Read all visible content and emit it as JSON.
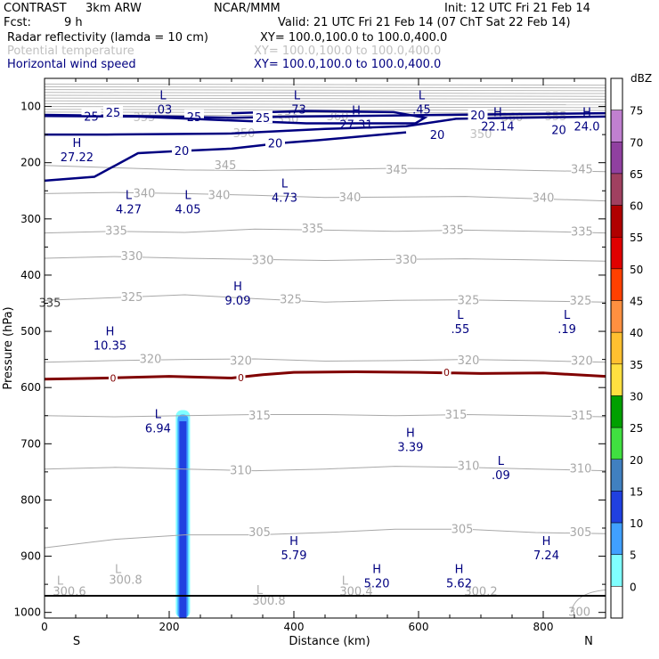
{
  "header": {
    "model": "CONTRAST",
    "resolution": "3km ARW",
    "center": "NCAR/MMM",
    "init": "Init: 12 UTC Fri 21 Feb 14",
    "fcst_label": "Fcst:",
    "fcst_value": "9 h",
    "valid": "Valid: 21 UTC Fri 21 Feb 14 (07 ChT Sat 22 Feb 14)"
  },
  "fields": [
    {
      "name": "Radar reflectivity (lamda = 10 cm)",
      "xy": "XY= 100.0,100.0 to 100.0,400.0",
      "color": "#000000"
    },
    {
      "name": "Potential temperature",
      "xy": "XY= 100.0,100.0 to 100.0,400.0",
      "color": "#c0c0c0"
    },
    {
      "name": "Horizontal wind speed",
      "xy": "XY= 100.0,100.0 to 100.0,400.0",
      "color": "#000080"
    }
  ],
  "chart_data": {
    "type": "cross-section",
    "xlabel": "Distance (km)",
    "ylabel": "Pressure (hPa)",
    "xlim": [
      0,
      900
    ],
    "ylim": [
      1010,
      50
    ],
    "x_ticks": [
      0,
      200,
      400,
      600,
      800
    ],
    "y_ticks": [
      100,
      200,
      300,
      400,
      500,
      600,
      700,
      800,
      900,
      1000
    ],
    "direction_left": "S",
    "direction_right": "N",
    "theta_lines": [
      {
        "value": "345",
        "p": [
          205,
          209,
          213,
          214,
          212,
          210,
          211,
          214,
          216
        ],
        "labels": [
          [
            290,
            205
          ],
          [
            565,
            213
          ],
          [
            862,
            212
          ]
        ]
      },
      {
        "value": "340",
        "p": [
          255,
          253,
          255,
          258,
          262,
          261,
          260,
          264,
          268
        ],
        "labels": [
          [
            160,
            255
          ],
          [
            280,
            258
          ],
          [
            490,
            262
          ],
          [
            800,
            263
          ]
        ]
      },
      {
        "value": "335",
        "p": [
          325,
          322,
          324,
          318,
          320,
          322,
          320,
          322,
          325
        ],
        "labels": [
          [
            115,
            322
          ],
          [
            430,
            318
          ],
          [
            655,
            320
          ],
          [
            862,
            323
          ]
        ]
      },
      {
        "value": "330",
        "p": [
          370,
          367,
          370,
          372,
          374,
          372,
          371,
          373,
          375
        ],
        "labels": [
          [
            140,
            367
          ],
          [
            350,
            374
          ],
          [
            580,
            373
          ]
        ]
      },
      {
        "value": "325",
        "p": [
          445,
          440,
          435,
          442,
          448,
          445,
          444,
          446,
          448
        ],
        "labels": [
          [
            140,
            440
          ],
          [
            395,
            444
          ],
          [
            680,
            445
          ],
          [
            860,
            446
          ]
        ]
      },
      {
        "value": "320",
        "p": [
          555,
          552,
          550,
          549,
          553,
          552,
          550,
          552,
          555
        ],
        "labels": [
          [
            170,
            550
          ],
          [
            315,
            553
          ],
          [
            680,
            552
          ],
          [
            862,
            553
          ]
        ]
      },
      {
        "value": "315",
        "p": [
          650,
          652,
          650,
          648,
          648,
          650,
          648,
          650,
          652
        ],
        "labels": [
          [
            345,
            650
          ],
          [
            660,
            649
          ],
          [
            862,
            650
          ]
        ]
      },
      {
        "value": "310",
        "p": [
          745,
          742,
          745,
          748,
          745,
          740,
          742,
          745,
          748
        ],
        "labels": [
          [
            315,
            748
          ],
          [
            680,
            740
          ],
          [
            860,
            745
          ]
        ]
      },
      {
        "value": "305",
        "p": [
          885,
          870,
          862,
          862,
          858,
          852,
          852,
          858,
          860
        ],
        "labels": [
          [
            345,
            858
          ],
          [
            670,
            852
          ],
          [
            860,
            858
          ]
        ]
      }
    ],
    "theta_extra_labels": [
      {
        "value": "355",
        "x": 160,
        "p": 120
      },
      {
        "value": "350",
        "x": 390,
        "p": 123
      },
      {
        "value": "360",
        "x": 470,
        "p": 118
      },
      {
        "value": "350",
        "x": 700,
        "p": 150
      },
      {
        "value": "360",
        "x": 750,
        "p": 120
      },
      {
        "value": "355",
        "x": 820,
        "p": 118
      },
      {
        "value": "350",
        "x": 320,
        "p": 148
      },
      {
        "value": "335",
        "x": 0,
        "p": 450
      }
    ],
    "theta_low_labels": [
      {
        "value": "300.6",
        "x": 40,
        "p": 963
      },
      {
        "value": "300.8",
        "x": 130,
        "p": 943
      },
      {
        "value": "300.8",
        "x": 360,
        "p": 980
      },
      {
        "value": "300.4",
        "x": 500,
        "p": 963
      },
      {
        "value": "300.2",
        "x": 700,
        "p": 963
      },
      {
        "value": "300",
        "x": 858,
        "p": 1000
      }
    ],
    "wind_contours": [
      {
        "level": "25",
        "pts": [
          [
            0,
            115
          ],
          [
            200,
            118
          ],
          [
            300,
            120
          ],
          [
            400,
            118
          ],
          [
            555,
            116
          ],
          [
            640,
            115
          ],
          [
            900,
            112
          ]
        ],
        "labels": [
          [
            75,
            117
          ],
          [
            240,
            118
          ]
        ]
      },
      {
        "level": "25",
        "pts": [
          [
            0,
            117
          ],
          [
            150,
            118
          ],
          [
            300,
            125
          ],
          [
            420,
            130
          ],
          [
            595,
            130
          ],
          [
            610,
            120
          ],
          [
            560,
            110
          ],
          [
            420,
            108
          ],
          [
            300,
            112
          ]
        ],
        "labels": [
          [
            110,
            110
          ],
          [
            350,
            120
          ]
        ]
      },
      {
        "level": "20",
        "pts": [
          [
            0,
            150
          ],
          [
            30,
            150
          ],
          [
            100,
            150
          ],
          [
            300,
            148
          ],
          [
            450,
            140
          ],
          [
            580,
            135
          ],
          [
            660,
            122
          ],
          [
            755,
            120
          ],
          [
            900,
            118
          ]
        ],
        "labels": [
          [
            695,
            115
          ],
          [
            825,
            141
          ]
        ]
      },
      {
        "level": "20",
        "pts": [
          [
            0,
            232
          ],
          [
            80,
            225
          ],
          [
            150,
            183
          ],
          [
            200,
            180
          ],
          [
            300,
            175
          ],
          [
            380,
            165
          ],
          [
            440,
            160
          ],
          [
            520,
            152
          ],
          [
            580,
            146
          ]
        ],
        "labels": [
          [
            220,
            178
          ],
          [
            370,
            165
          ],
          [
            630,
            150
          ]
        ]
      }
    ],
    "freezing_level": {
      "label": "0",
      "x": [
        0,
        100,
        200,
        300,
        350,
        400,
        500,
        600,
        700,
        800,
        900
      ],
      "p": [
        585,
        583,
        580,
        583,
        577,
        573,
        572,
        573,
        575,
        574,
        580
      ],
      "labels": [
        [
          110,
          583
        ],
        [
          315,
          582
        ],
        [
          645,
          573
        ]
      ]
    },
    "reflectivity_column": {
      "x_center": 222,
      "p_top": 640,
      "p_bottom": 1010,
      "core_top": 660
    },
    "hl_markers": [
      {
        "letter": "L",
        "value": ".03",
        "x": 190,
        "p": 100
      },
      {
        "letter": "L",
        "value": ".73",
        "x": 405,
        "p": 100
      },
      {
        "letter": "L",
        "value": ".45",
        "x": 605,
        "p": 100
      },
      {
        "letter": "H",
        "value": "27.31",
        "x": 500,
        "p": 127
      },
      {
        "letter": "H",
        "value": "22.14",
        "x": 727,
        "p": 130
      },
      {
        "letter": "H",
        "value": "24.0",
        "x": 870,
        "p": 130
      },
      {
        "letter": "H",
        "value": "27.22",
        "x": 52,
        "p": 185
      },
      {
        "letter": "L",
        "value": "4.27",
        "x": 135,
        "p": 277
      },
      {
        "letter": "L",
        "value": "4.05",
        "x": 230,
        "p": 277
      },
      {
        "letter": "L",
        "value": "4.73",
        "x": 385,
        "p": 257
      },
      {
        "letter": "H",
        "value": "9.09",
        "x": 310,
        "p": 440
      },
      {
        "letter": "L",
        "value": ".55",
        "x": 667,
        "p": 490
      },
      {
        "letter": "L",
        "value": ".19",
        "x": 838,
        "p": 490
      },
      {
        "letter": "H",
        "value": "10.35",
        "x": 105,
        "p": 520
      },
      {
        "letter": "L",
        "value": "6.94",
        "x": 182,
        "p": 667
      },
      {
        "letter": "H",
        "value": "3.39",
        "x": 587,
        "p": 700
      },
      {
        "letter": "L",
        "value": ".09",
        "x": 732,
        "p": 750
      },
      {
        "letter": "H",
        "value": "5.79",
        "x": 400,
        "p": 893
      },
      {
        "letter": "H",
        "value": "7.24",
        "x": 805,
        "p": 893
      },
      {
        "letter": "H",
        "value": "5.20",
        "x": 533,
        "p": 943
      },
      {
        "letter": "H",
        "value": "5.62",
        "x": 665,
        "p": 943
      }
    ],
    "l_only_markers": [
      {
        "letter": "L",
        "x": 25,
        "p": 963
      },
      {
        "letter": "L",
        "x": 118,
        "p": 943
      },
      {
        "letter": "L",
        "x": 345,
        "p": 980
      },
      {
        "letter": "L",
        "x": 482,
        "p": 963
      }
    ],
    "colorbar": {
      "unit": "dBZ",
      "levels": [
        "75",
        "70",
        "65",
        "60",
        "55",
        "50",
        "45",
        "40",
        "35",
        "30",
        "25",
        "20",
        "15",
        "10",
        "5",
        "0"
      ],
      "colors": [
        "#ffffff",
        "#c080d0",
        "#9040a0",
        "#a04060",
        "#b00000",
        "#e00000",
        "#ff4000",
        "#ff9040",
        "#ffc030",
        "#ffe040",
        "#00a000",
        "#40e040",
        "#4080c0",
        "#2040e0",
        "#40a0ff",
        "#80ffff",
        "#ffffff"
      ]
    }
  }
}
